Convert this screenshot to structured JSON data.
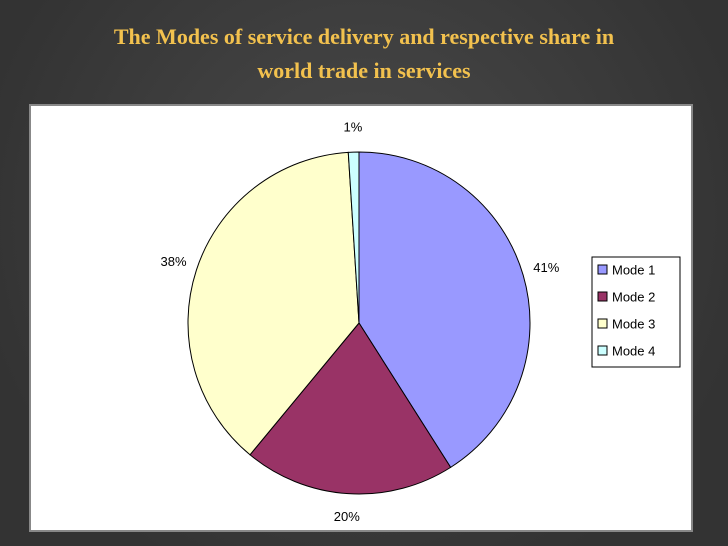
{
  "chart_data": {
    "type": "pie",
    "title": [
      "The Modes of service delivery and respective share in",
      "world trade in services"
    ],
    "categories": [
      "Mode 1",
      "Mode 2",
      "Mode 3",
      "Mode 4"
    ],
    "values": [
      41,
      20,
      38,
      1
    ],
    "value_labels": [
      "41%",
      "20%",
      "38%",
      "1%"
    ],
    "colors": [
      "#9999ff",
      "#993366",
      "#ffffcc",
      "#ccffff"
    ],
    "legend": "right"
  }
}
